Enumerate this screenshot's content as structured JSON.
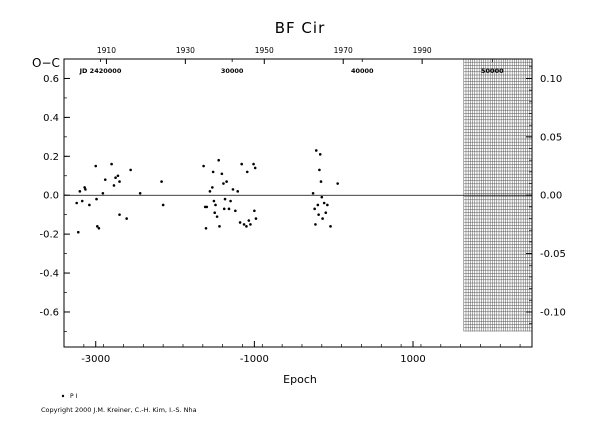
{
  "chart_data": {
    "type": "scatter",
    "title": "BF Cir",
    "xlabel": "Epoch",
    "ylabel": "O−C",
    "xlim": [
      -3400,
      2500
    ],
    "ylim": [
      -0.78,
      0.7
    ],
    "x_ticks": [
      {
        "value": -3000,
        "label": "-3000"
      },
      {
        "value": -1000,
        "label": "-1000"
      },
      {
        "value": 1000,
        "label": "1000"
      }
    ],
    "y_ticks_left": [
      {
        "value": 0.6,
        "label": "0.6"
      },
      {
        "value": 0.4,
        "label": "0.4"
      },
      {
        "value": 0.2,
        "label": "0.2"
      },
      {
        "value": 0.0,
        "label": "0.0"
      },
      {
        "value": -0.2,
        "label": "-0.2"
      },
      {
        "value": -0.4,
        "label": "-0.4"
      },
      {
        "value": -0.6,
        "label": "-0.6"
      }
    ],
    "y_ticks_right": [
      {
        "value": 0.1,
        "label": "0.10"
      },
      {
        "value": 0.05,
        "label": "0.05"
      },
      {
        "value": 0.0,
        "label": "0.00"
      },
      {
        "value": -0.05,
        "label": "-0.05"
      },
      {
        "value": -0.1,
        "label": "-0.10"
      }
    ],
    "right_axis_scale": 0.1667,
    "top_years": [
      {
        "label": "1910",
        "epoch": -2865
      },
      {
        "label": "1930",
        "epoch": -1870
      },
      {
        "label": "1950",
        "epoch": -875
      },
      {
        "label": "1970",
        "epoch": 120
      },
      {
        "label": "1990",
        "epoch": 1115
      }
    ],
    "jd_labels": [
      {
        "label": "JD 2420000",
        "epoch": -2940
      },
      {
        "label": "30000",
        "epoch": -1280
      },
      {
        "label": "40000",
        "epoch": 360
      },
      {
        "label": "50000",
        "epoch": 2000
      }
    ],
    "hatched_region": {
      "from_epoch": 1640,
      "to_epoch": 2500,
      "y_from": -0.7,
      "y_to": 0.7
    },
    "zero_line": true,
    "legend": {
      "entries": [
        {
          "label": "P I",
          "marker": "dot"
        }
      ],
      "position": "bottom-left"
    },
    "series": [
      {
        "marker": "dot",
        "points": [
          {
            "x": -3240,
            "y": -0.04
          },
          {
            "x": -3220,
            "y": -0.19
          },
          {
            "x": -3200,
            "y": 0.02
          },
          {
            "x": -3170,
            "y": -0.03
          },
          {
            "x": -3140,
            "y": 0.04
          },
          {
            "x": -3130,
            "y": 0.03
          },
          {
            "x": -3080,
            "y": -0.05
          },
          {
            "x": -3000,
            "y": 0.15
          },
          {
            "x": -2990,
            "y": -0.02
          },
          {
            "x": -2980,
            "y": -0.16
          },
          {
            "x": -2960,
            "y": -0.17
          },
          {
            "x": -2910,
            "y": 0.01
          },
          {
            "x": -2880,
            "y": 0.08
          },
          {
            "x": -2800,
            "y": 0.16
          },
          {
            "x": -2770,
            "y": 0.05
          },
          {
            "x": -2750,
            "y": 0.09
          },
          {
            "x": -2720,
            "y": 0.1
          },
          {
            "x": -2700,
            "y": 0.07
          },
          {
            "x": -2700,
            "y": -0.1
          },
          {
            "x": -2610,
            "y": -0.12
          },
          {
            "x": -2560,
            "y": 0.13
          },
          {
            "x": -2440,
            "y": 0.01
          },
          {
            "x": -2170,
            "y": 0.07
          },
          {
            "x": -2150,
            "y": -0.05
          },
          {
            "x": -1640,
            "y": 0.15
          },
          {
            "x": -1620,
            "y": -0.06
          },
          {
            "x": -1610,
            "y": -0.17
          },
          {
            "x": -1600,
            "y": -0.06
          },
          {
            "x": -1560,
            "y": 0.02
          },
          {
            "x": -1530,
            "y": 0.04
          },
          {
            "x": -1520,
            "y": 0.12
          },
          {
            "x": -1510,
            "y": -0.03
          },
          {
            "x": -1500,
            "y": -0.09
          },
          {
            "x": -1490,
            "y": -0.05
          },
          {
            "x": -1470,
            "y": -0.11
          },
          {
            "x": -1450,
            "y": 0.18
          },
          {
            "x": -1440,
            "y": -0.16
          },
          {
            "x": -1410,
            "y": 0.11
          },
          {
            "x": -1390,
            "y": 0.06
          },
          {
            "x": -1380,
            "y": -0.07
          },
          {
            "x": -1370,
            "y": -0.02
          },
          {
            "x": -1350,
            "y": 0.07
          },
          {
            "x": -1320,
            "y": -0.07
          },
          {
            "x": -1300,
            "y": -0.03
          },
          {
            "x": -1270,
            "y": 0.03
          },
          {
            "x": -1240,
            "y": -0.08
          },
          {
            "x": -1210,
            "y": 0.02
          },
          {
            "x": -1180,
            "y": -0.14
          },
          {
            "x": -1160,
            "y": 0.16
          },
          {
            "x": -1130,
            "y": -0.15
          },
          {
            "x": -1100,
            "y": -0.16
          },
          {
            "x": -1090,
            "y": 0.12
          },
          {
            "x": -1070,
            "y": -0.13
          },
          {
            "x": -1050,
            "y": -0.15
          },
          {
            "x": -1010,
            "y": 0.16
          },
          {
            "x": -1000,
            "y": -0.08
          },
          {
            "x": -990,
            "y": 0.14
          },
          {
            "x": -980,
            "y": -0.12
          },
          {
            "x": -260,
            "y": 0.01
          },
          {
            "x": -240,
            "y": -0.07
          },
          {
            "x": -230,
            "y": -0.15
          },
          {
            "x": -220,
            "y": 0.23
          },
          {
            "x": -200,
            "y": -0.05
          },
          {
            "x": -190,
            "y": -0.1
          },
          {
            "x": -180,
            "y": 0.13
          },
          {
            "x": -170,
            "y": 0.21
          },
          {
            "x": -160,
            "y": 0.07
          },
          {
            "x": -150,
            "y": -0.01
          },
          {
            "x": -140,
            "y": -0.12
          },
          {
            "x": -120,
            "y": -0.04
          },
          {
            "x": -100,
            "y": -0.09
          },
          {
            "x": -80,
            "y": -0.05
          },
          {
            "x": -40,
            "y": -0.16
          },
          {
            "x": 50,
            "y": 0.06
          }
        ]
      }
    ]
  },
  "copyright": "Copyright 2000 J.M. Kreiner, C.-H. Kim, I.-S. Nha"
}
